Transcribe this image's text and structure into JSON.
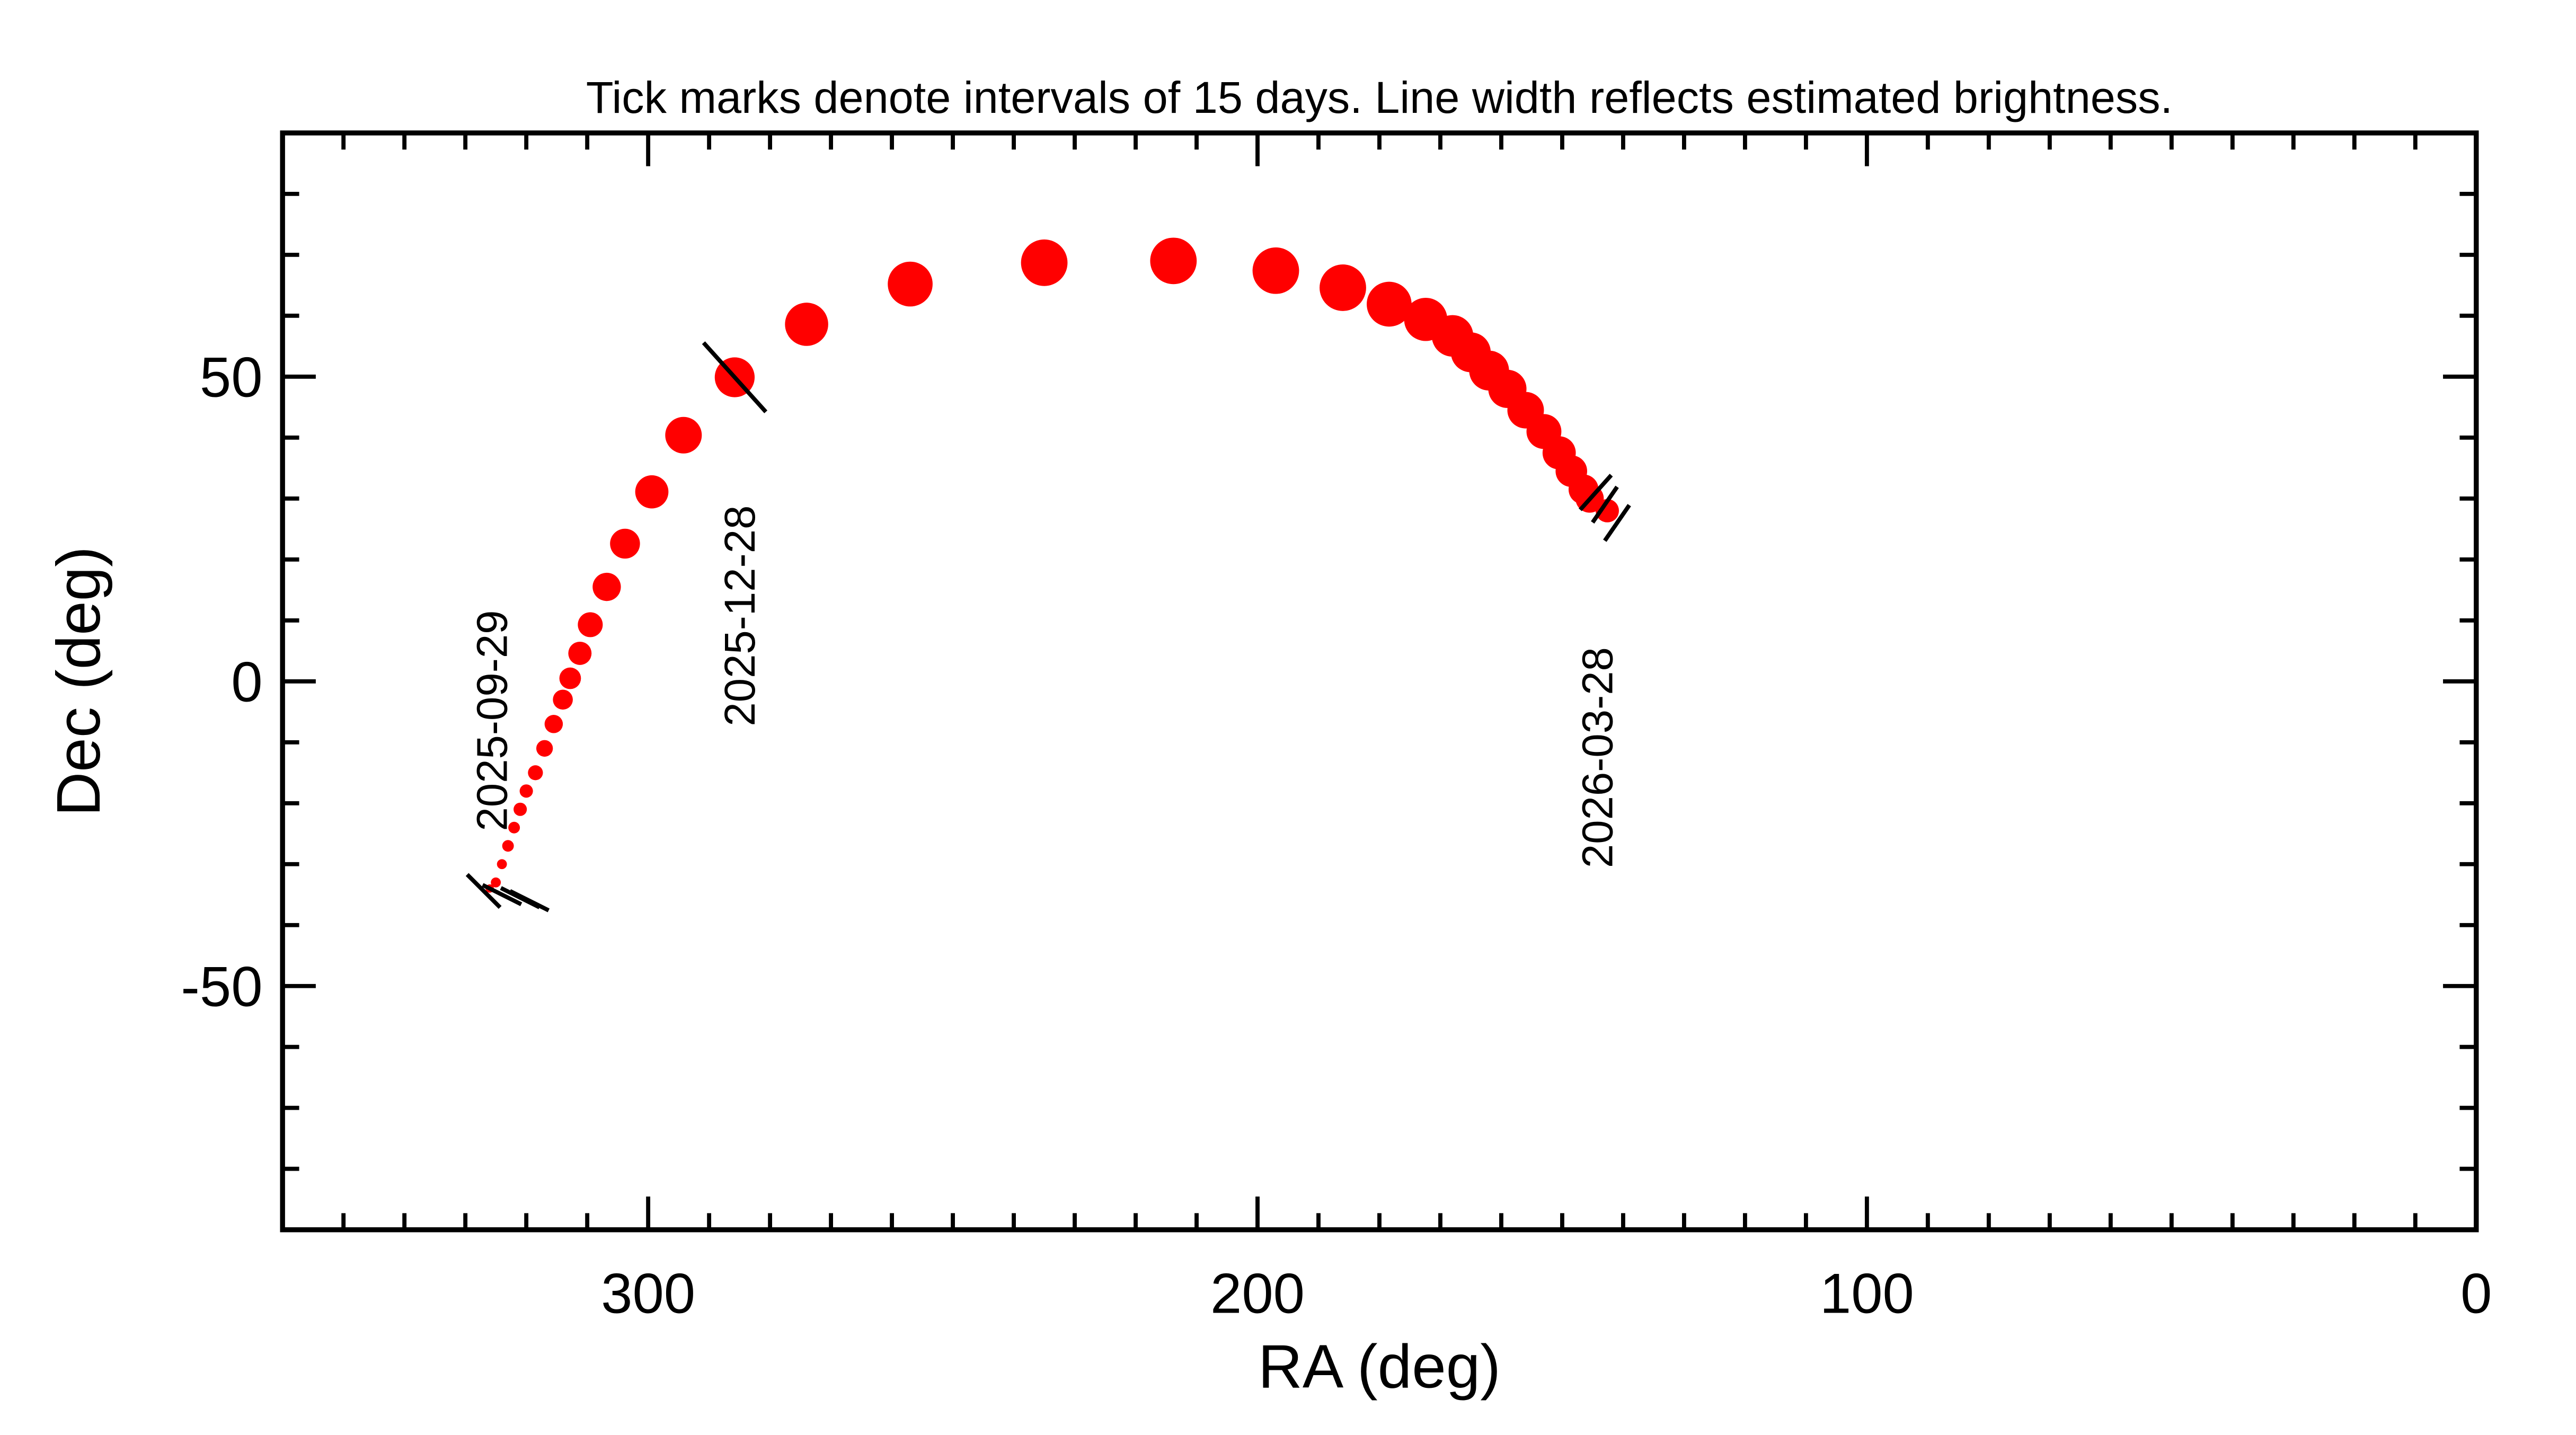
{
  "chart_data": {
    "type": "scatter",
    "title": "Tick marks denote intervals of 15 days.  Line width reflects estimated brightness.",
    "xlabel": "RA (deg)",
    "ylabel": "Dec (deg)",
    "xlim": [
      360,
      0
    ],
    "ylim": [
      -90,
      90
    ],
    "xticks": [
      300,
      200,
      100,
      0
    ],
    "yticks": [
      -50,
      0,
      50
    ],
    "xminorticks": [
      350,
      340,
      330,
      320,
      310,
      290,
      280,
      270,
      260,
      250,
      240,
      230,
      220,
      210,
      190,
      180,
      170,
      160,
      150,
      140,
      130,
      120,
      110,
      90,
      80,
      70,
      60,
      50,
      40,
      30,
      20,
      10
    ],
    "yminorticks": [
      -80,
      -70,
      -60,
      -40,
      -30,
      -20,
      -10,
      10,
      20,
      30,
      40,
      60,
      70,
      80
    ],
    "color": "#ff0000",
    "x": [
      326,
      325,
      324,
      323,
      322,
      321,
      320,
      318.5,
      317,
      315.5,
      314,
      312.8,
      311.2,
      309.5,
      306.8,
      303.8,
      299.4,
      294.2,
      285.8,
      274,
      257,
      235,
      213.8,
      197,
      186,
      178.4,
      172.4,
      168,
      165,
      162,
      159,
      156,
      153,
      150.5,
      148.5,
      146.5,
      145.5,
      142.6
    ],
    "y": [
      -34,
      -33,
      -30,
      -27,
      -24,
      -21,
      -18,
      -15,
      -11,
      -7,
      -3,
      0.5,
      4.6,
      9.3,
      15.5,
      22.6,
      31.1,
      40.4,
      49.9,
      58.6,
      65.2,
      68.7,
      69,
      67.4,
      64.6,
      61.9,
      59.4,
      56.7,
      54,
      51,
      48,
      44.5,
      41,
      37.5,
      34.5,
      31.5,
      30,
      28
    ],
    "sizes": [
      2.5,
      3,
      3,
      3.5,
      3.5,
      4,
      4,
      4.5,
      5,
      5.5,
      6,
      6.5,
      7,
      7.5,
      8.5,
      9,
      10,
      11,
      12,
      13,
      13.5,
      14,
      14,
      14,
      14,
      13.5,
      13,
      12.5,
      12,
      12,
      11.5,
      11,
      10.5,
      10,
      9.5,
      9,
      8.5,
      7
    ],
    "tick_marks": {
      "x": [
        324,
        321,
        319.5,
        143,
        141
      ],
      "y": [
        -35,
        -35.5,
        -36,
        29,
        26
      ]
    },
    "annotations": [
      {
        "text": "2025-09-29",
        "x": 327,
        "y": -34.4
      },
      {
        "text": "2025-12-28",
        "x": 285.8,
        "y": 49.9
      },
      {
        "text": "2026-03-28",
        "x": 144.5,
        "y": 31
      }
    ]
  }
}
